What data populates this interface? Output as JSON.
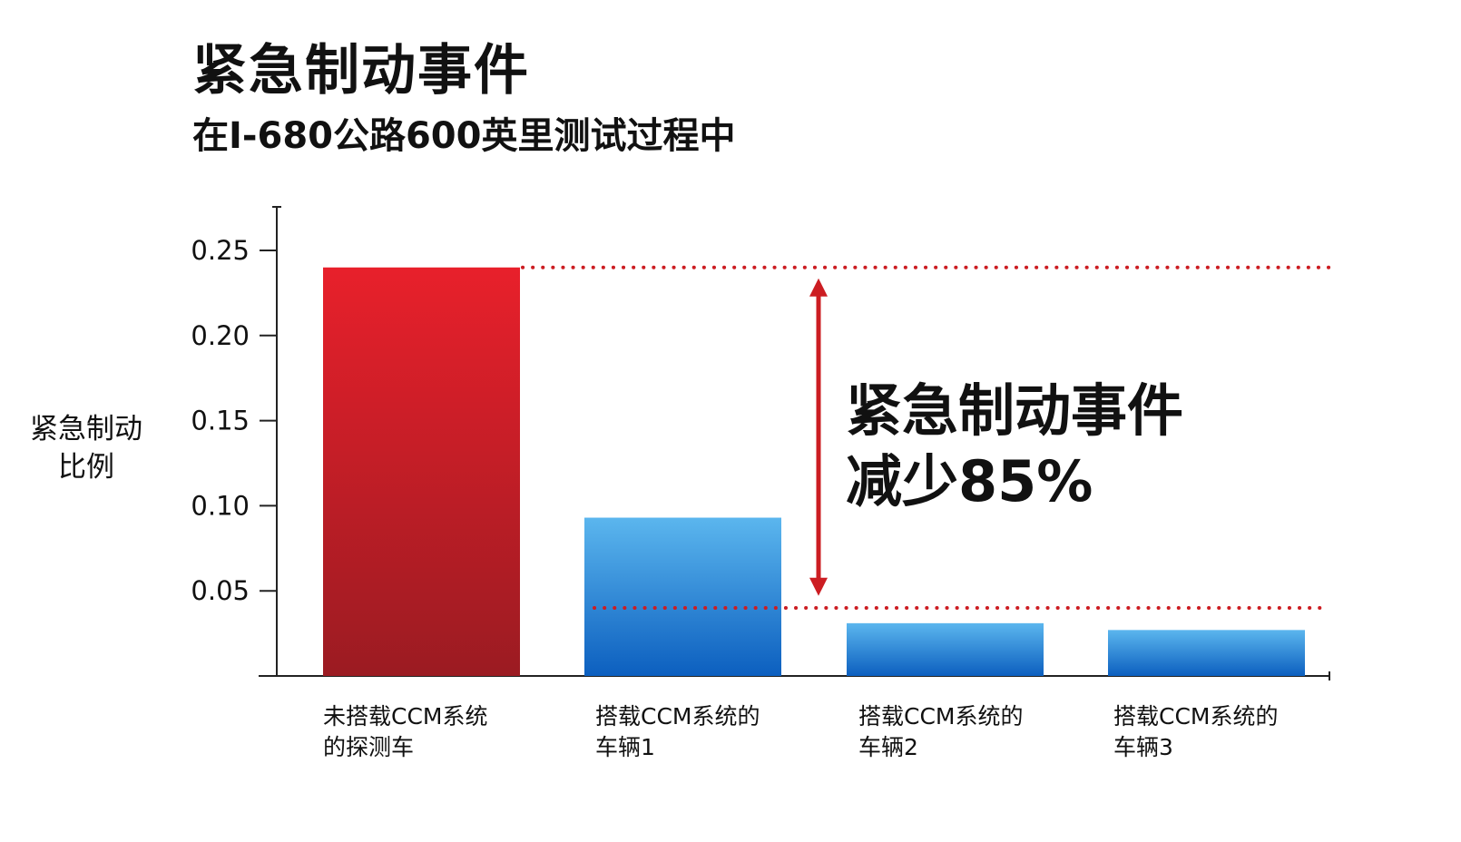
{
  "chart_data": {
    "type": "bar",
    "title": "紧急制动事件",
    "subtitle": "在I-680公路600英里测试过程中",
    "ylabel_lines": [
      "紧急制动",
      "比例"
    ],
    "ylim": [
      0,
      0.25
    ],
    "yticks": [
      "0.25",
      "0.20",
      "0.15",
      "0.10",
      "0.05"
    ],
    "ytick_values": [
      0.25,
      0.2,
      0.15,
      0.1,
      0.05
    ],
    "categories": [
      [
        "未搭载CCM系统",
        "的探测车"
      ],
      [
        "搭载CCM系统的",
        "车辆1"
      ],
      [
        "搭载CCM系统的",
        "车辆2"
      ],
      [
        "搭载CCM系统的",
        "车辆3"
      ]
    ],
    "values": [
      0.24,
      0.093,
      0.031,
      0.027
    ],
    "bar_colors": [
      "red-gradient",
      "blue-gradient",
      "blue-gradient",
      "blue-gradient"
    ],
    "colors": {
      "red_top": "#e8202b",
      "red_bottom": "#9b1b22",
      "blue_top": "#5bb6ee",
      "blue_bottom": "#0c5fbf",
      "accent": "#cc1d22",
      "axis": "#222222"
    },
    "reference_lines": [
      0.24,
      0.04
    ],
    "annotation": {
      "lines": [
        "紧急制动事件",
        "减少85%"
      ],
      "arrow_from": 0.24,
      "arrow_to": 0.046
    },
    "grid": false
  }
}
